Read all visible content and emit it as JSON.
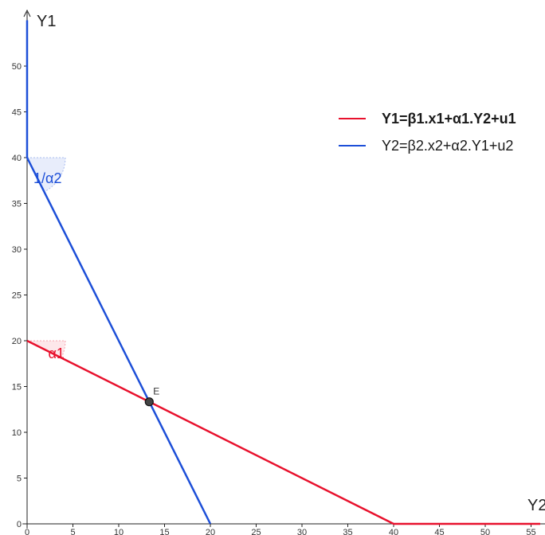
{
  "chart_data": {
    "type": "line",
    "xlabel": "Y2",
    "ylabel": "Y1",
    "xlim": [
      -0.5,
      56
    ],
    "ylim": [
      -0.5,
      55
    ],
    "x_ticks": [
      "0",
      "5",
      "10",
      "15",
      "20",
      "25",
      "30",
      "35",
      "40",
      "45",
      "50",
      "55"
    ],
    "y_ticks": [
      "0",
      "5",
      "10",
      "15",
      "20",
      "25",
      "30",
      "35",
      "40",
      "45",
      "50"
    ],
    "grid": false,
    "legend_position": "top-right",
    "series": [
      {
        "name": "Y1=β1.x1+α1.Y2+u1",
        "color": "#e8112d",
        "bold": true,
        "points": [
          [
            0,
            20
          ],
          [
            40,
            0
          ],
          [
            56,
            0
          ]
        ]
      },
      {
        "name": "Y2=β2.x2+α2.Y1+u2",
        "color": "#1d4fd8",
        "bold": false,
        "points": [
          [
            0,
            55
          ],
          [
            0,
            40
          ],
          [
            20,
            0
          ]
        ]
      }
    ],
    "annotations": [
      {
        "text": "1/α2",
        "x": 0.7,
        "y": 37.2,
        "color": "#1d4fd8"
      },
      {
        "text": "α1",
        "x": 2.3,
        "y": 18.1,
        "color": "#e8112d"
      }
    ],
    "angle_markers": [
      {
        "x": 0,
        "y": 40,
        "color": "#1d4fd8"
      },
      {
        "x": 0,
        "y": 20,
        "color": "#e8112d"
      }
    ],
    "point": {
      "label": "E",
      "x": 13.33,
      "y": 13.33,
      "color": "#333333"
    }
  }
}
